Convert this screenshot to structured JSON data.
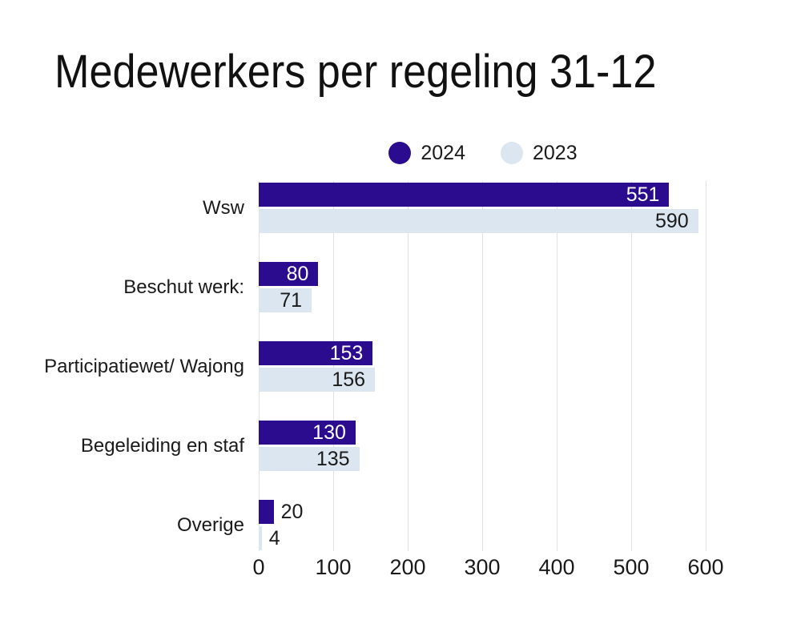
{
  "title": "Medewerkers per regeling 31-12",
  "chart_data": {
    "type": "bar",
    "orientation": "horizontal",
    "title": "Medewerkers per regeling 31-12",
    "categories": [
      "Wsw",
      "Beschut werk:",
      "Participatiewet/ Wajong",
      "Begeleiding en staf",
      "Overige"
    ],
    "series": [
      {
        "name": "2024",
        "color": "#2B0C8E",
        "label_color": "#FFFFFF",
        "values": [
          551,
          80,
          153,
          130,
          20
        ]
      },
      {
        "name": "2023",
        "color": "#DCE6F0",
        "label_color": "#1A1A1A",
        "values": [
          590,
          71,
          156,
          135,
          4
        ]
      }
    ],
    "xlim": [
      0,
      600
    ],
    "xticks": [
      0,
      100,
      200,
      300,
      400,
      500,
      600
    ],
    "xlabel": "",
    "ylabel": "",
    "grid": true,
    "legend_position": "top-center",
    "value_labels": "end-of-bar"
  },
  "colors": {
    "background": "#FFFFFF",
    "gridline": "#E0E0E0",
    "text": "#1A1A1A"
  }
}
